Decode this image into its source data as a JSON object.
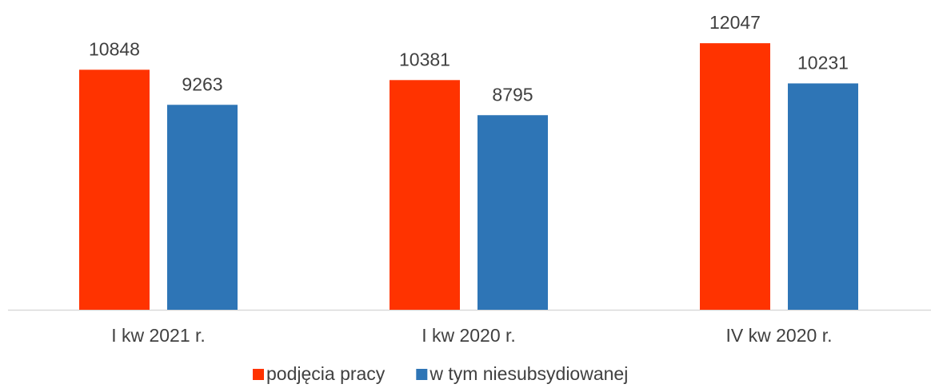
{
  "chart_data": {
    "type": "bar",
    "categories": [
      "I kw 2021 r.",
      "I kw 2020 r.",
      "IV kw 2020 r."
    ],
    "series": [
      {
        "name": "podjęcia pracy",
        "color": "#ff3300",
        "values": [
          10848,
          10381,
          12047
        ]
      },
      {
        "name": "w tym niesubsydiowanej",
        "color": "#2e75b6",
        "values": [
          9263,
          8795,
          10231
        ]
      }
    ],
    "ylim": [
      0,
      14000
    ]
  }
}
